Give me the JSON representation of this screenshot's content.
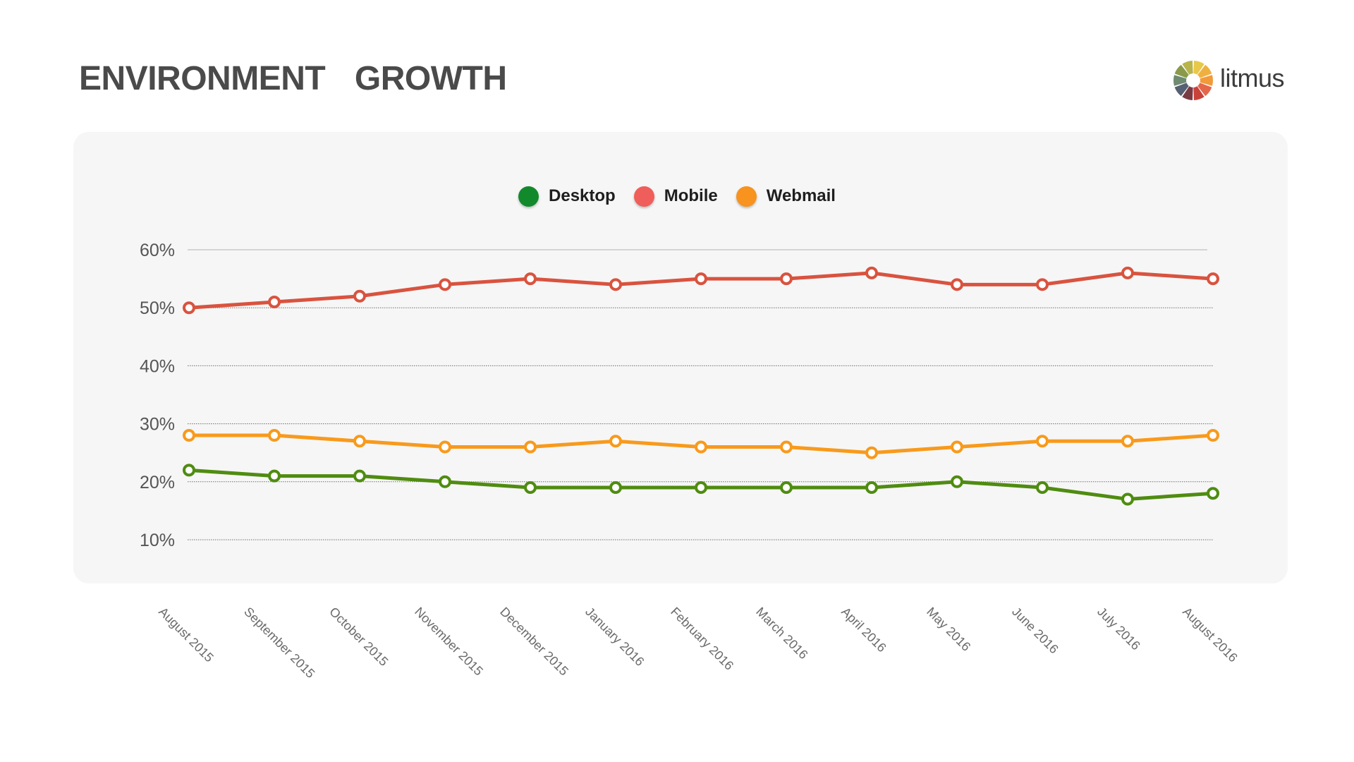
{
  "header": {
    "title": "ENVIRONMENT  GROWTH",
    "brand_name": "litmus",
    "brand_colors": [
      "#e8c84a",
      "#f0b040",
      "#f29a3a",
      "#e4674a",
      "#c9423a",
      "#7a3a44",
      "#566072",
      "#6f8a70",
      "#8a9a4a",
      "#b7b44c"
    ]
  },
  "chart_data": {
    "type": "line",
    "categories": [
      "August 2015",
      "September 2015",
      "October 2015",
      "November 2015",
      "December 2015",
      "January 2016",
      "February 2016",
      "March 2016",
      "April 2016",
      "May 2016",
      "June 2016",
      "July 2016",
      "August 2016"
    ],
    "series": [
      {
        "name": "Desktop",
        "color": "#4f8c10",
        "legend_color": "#128a2c",
        "values": [
          22,
          21,
          21,
          20,
          19,
          19,
          19,
          19,
          19,
          20,
          19,
          17,
          18
        ]
      },
      {
        "name": "Mobile",
        "color": "#d9533f",
        "legend_color": "#ef5e5a",
        "values": [
          50,
          51,
          52,
          54,
          55,
          54,
          55,
          55,
          56,
          54,
          54,
          56,
          55
        ]
      },
      {
        "name": "Webmail",
        "color": "#f89a1c",
        "legend_color": "#f7931e",
        "values": [
          28,
          28,
          27,
          26,
          26,
          27,
          26,
          26,
          25,
          26,
          27,
          27,
          28
        ]
      }
    ],
    "yticks": [
      "10%",
      "20%",
      "30%",
      "40%",
      "50%",
      "60%"
    ],
    "ytick_values": [
      10,
      20,
      30,
      40,
      50,
      60
    ],
    "ylim": [
      10,
      60
    ],
    "grid": true,
    "legend_position": "top-center"
  }
}
